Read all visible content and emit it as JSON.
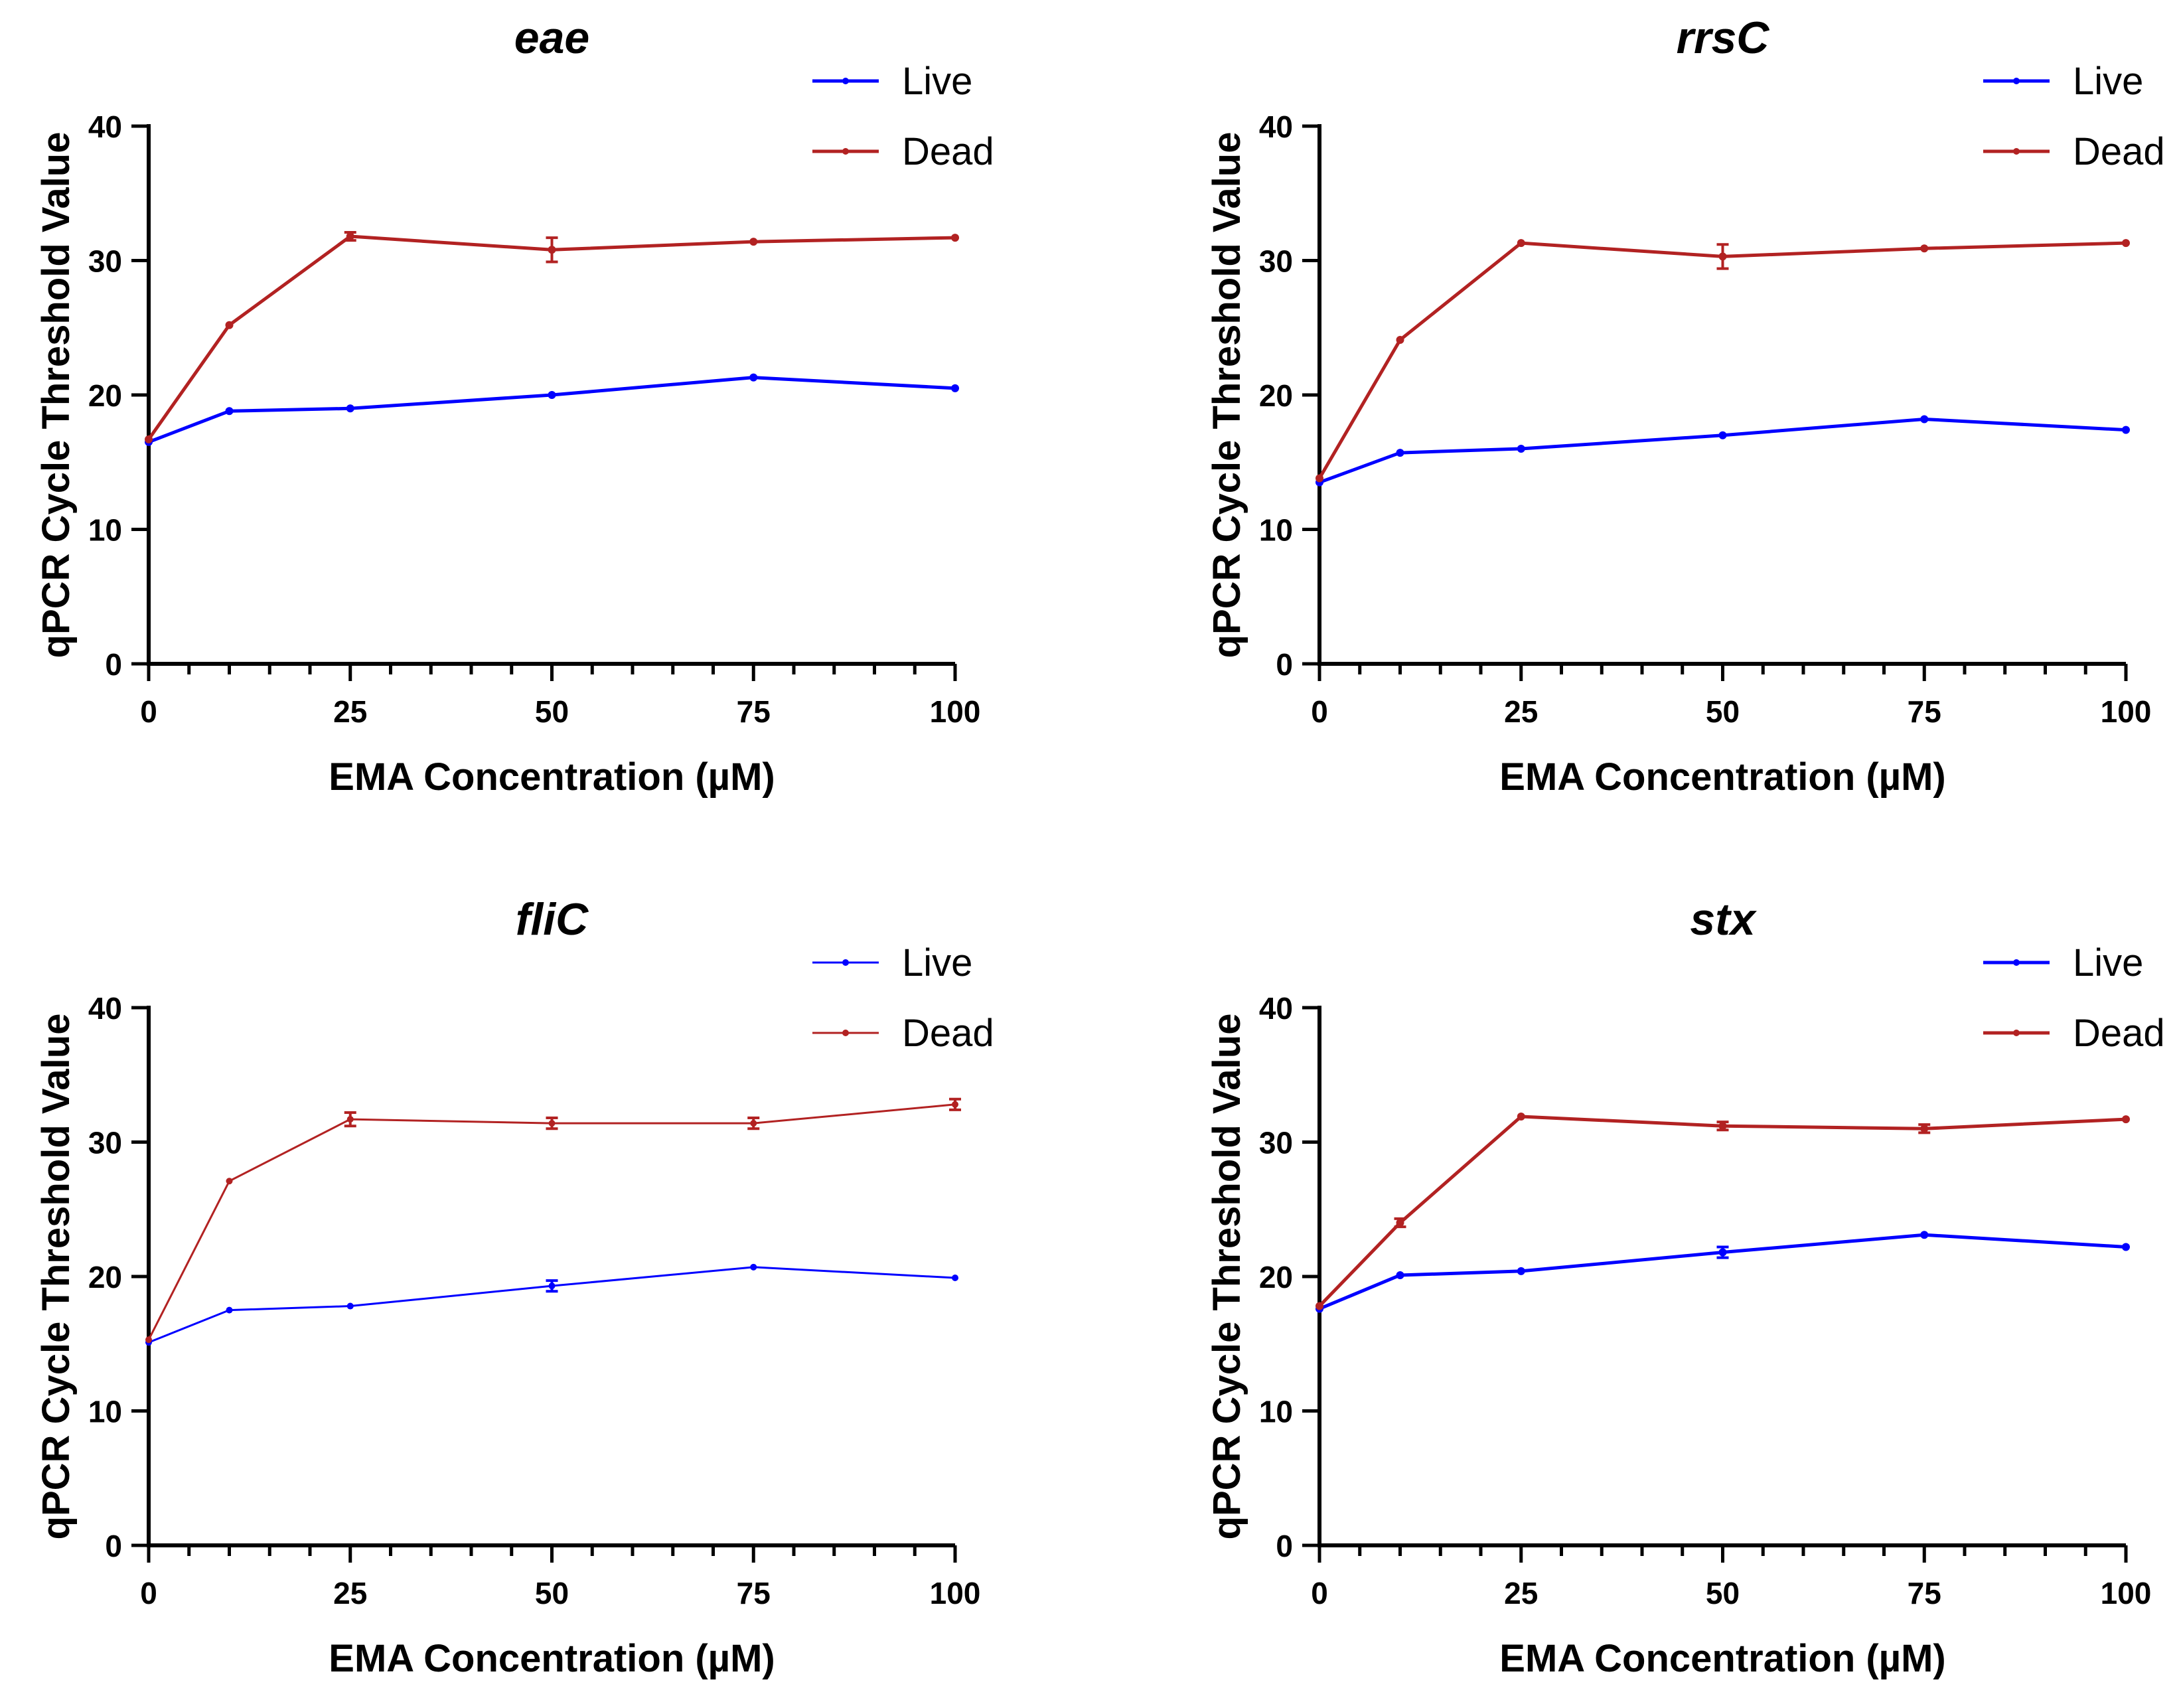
{
  "figure": {
    "panel_count": 4
  },
  "chart_data": [
    {
      "type": "line",
      "title": "eae",
      "xlabel": "EMA Concentration (µM)",
      "ylabel": "qPCR Cycle Threshold Value",
      "x": [
        0,
        10,
        25,
        50,
        75,
        100
      ],
      "x_ticks": [
        0,
        25,
        50,
        75,
        100
      ],
      "x_tick_labels": [
        "0",
        "25",
        "50",
        "75",
        "100"
      ],
      "y_ticks": [
        0,
        10,
        20,
        30,
        40
      ],
      "y_tick_labels": [
        "0",
        "10",
        "20",
        "30",
        "40"
      ],
      "xlim": [
        0,
        100
      ],
      "ylim": [
        0,
        40
      ],
      "legend_position": "top-right",
      "series": [
        {
          "name": "Live",
          "color": "#0000ff",
          "values": [
            16.5,
            18.8,
            19.0,
            20.0,
            21.3,
            20.5
          ],
          "errors": [
            0.15,
            0.15,
            0.15,
            0.15,
            0.15,
            0.15
          ]
        },
        {
          "name": "Dead",
          "color": "#b22222",
          "values": [
            16.7,
            25.2,
            31.8,
            30.8,
            31.4,
            31.7
          ],
          "errors": [
            0.2,
            0.2,
            0.3,
            0.9,
            0.2,
            0.2
          ]
        }
      ]
    },
    {
      "type": "line",
      "title": "rrsC",
      "xlabel": "EMA Concentration (µM)",
      "ylabel": "qPCR Cycle Threshold Value",
      "x": [
        0,
        10,
        25,
        50,
        75,
        100
      ],
      "x_ticks": [
        0,
        25,
        50,
        75,
        100
      ],
      "x_tick_labels": [
        "0",
        "25",
        "50",
        "75",
        "100"
      ],
      "y_ticks": [
        0,
        10,
        20,
        30,
        40
      ],
      "y_tick_labels": [
        "0",
        "10",
        "20",
        "30",
        "40"
      ],
      "xlim": [
        0,
        100
      ],
      "ylim": [
        0,
        40
      ],
      "legend_position": "top-right",
      "series": [
        {
          "name": "Live",
          "color": "#0000ff",
          "values": [
            13.5,
            15.7,
            16.0,
            17.0,
            18.2,
            17.4
          ],
          "errors": [
            0.15,
            0.15,
            0.15,
            0.15,
            0.15,
            0.15
          ]
        },
        {
          "name": "Dead",
          "color": "#b22222",
          "values": [
            13.8,
            24.1,
            31.3,
            30.3,
            30.9,
            31.3
          ],
          "errors": [
            0.2,
            0.2,
            0.2,
            0.9,
            0.2,
            0.2
          ]
        }
      ]
    },
    {
      "type": "line",
      "title": "fliC",
      "xlabel": "EMA Concentration (µM)",
      "ylabel": "qPCR Cycle Threshold Value",
      "x": [
        0,
        10,
        25,
        50,
        75,
        100
      ],
      "x_ticks": [
        0,
        25,
        50,
        75,
        100
      ],
      "x_tick_labels": [
        "0",
        "25",
        "50",
        "75",
        "100"
      ],
      "y_ticks": [
        0,
        10,
        20,
        30,
        40
      ],
      "y_tick_labels": [
        "0",
        "10",
        "20",
        "30",
        "40"
      ],
      "xlim": [
        0,
        100
      ],
      "ylim": [
        0,
        40
      ],
      "legend_position": "top-right",
      "series": [
        {
          "name": "Live",
          "color": "#0000ff",
          "values": [
            15.1,
            17.5,
            17.8,
            19.3,
            20.7,
            19.9
          ],
          "errors": [
            0.15,
            0.15,
            0.15,
            0.4,
            0.15,
            0.15
          ]
        },
        {
          "name": "Dead",
          "color": "#b22222",
          "values": [
            15.3,
            27.1,
            31.7,
            31.4,
            31.4,
            32.8
          ],
          "errors": [
            0.2,
            0.2,
            0.5,
            0.4,
            0.4,
            0.4
          ]
        }
      ]
    },
    {
      "type": "line",
      "title": "stx",
      "xlabel": "EMA Concentration (µM)",
      "ylabel": "qPCR Cycle Threshold Value",
      "x": [
        0,
        10,
        25,
        50,
        75,
        100
      ],
      "x_ticks": [
        0,
        25,
        50,
        75,
        100
      ],
      "x_tick_labels": [
        "0",
        "25",
        "50",
        "75",
        "100"
      ],
      "y_ticks": [
        0,
        10,
        20,
        30,
        40
      ],
      "y_tick_labels": [
        "0",
        "10",
        "20",
        "30",
        "40"
      ],
      "xlim": [
        0,
        100
      ],
      "ylim": [
        0,
        40
      ],
      "legend_position": "top-right",
      "series": [
        {
          "name": "Live",
          "color": "#0000ff",
          "values": [
            17.6,
            20.1,
            20.4,
            21.8,
            23.1,
            22.2
          ],
          "errors": [
            0.15,
            0.15,
            0.15,
            0.4,
            0.15,
            0.15
          ]
        },
        {
          "name": "Dead",
          "color": "#b22222",
          "values": [
            17.8,
            24.0,
            31.9,
            31.2,
            31.0,
            31.7
          ],
          "errors": [
            0.2,
            0.3,
            0.2,
            0.3,
            0.3,
            0.2
          ]
        }
      ]
    }
  ]
}
